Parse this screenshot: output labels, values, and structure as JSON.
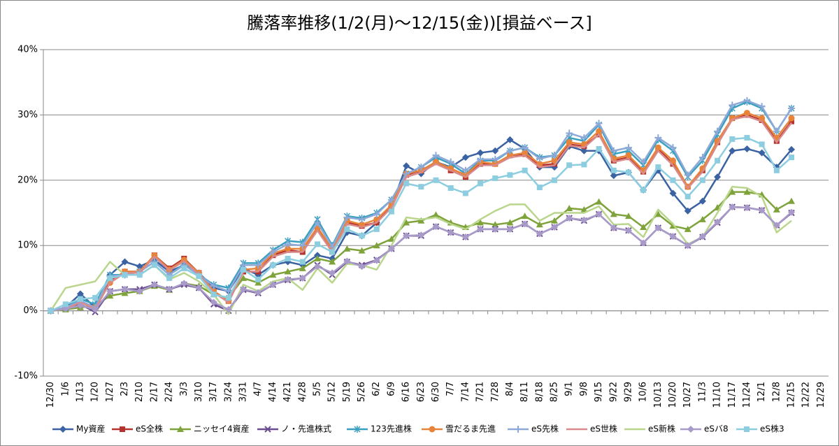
{
  "chart_data": {
    "type": "line",
    "title": "騰落率推移(1/2(月)～12/15(金))[損益ベース]",
    "categories": [
      "12/30",
      "1/6",
      "1/13",
      "1/20",
      "1/27",
      "2/3",
      "2/10",
      "2/17",
      "2/24",
      "3/3",
      "3/10",
      "3/17",
      "3/24",
      "3/31",
      "4/7",
      "4/14",
      "4/21",
      "4/28",
      "5/5",
      "5/12",
      "5/19",
      "5/26",
      "6/2",
      "6/9",
      "6/16",
      "6/23",
      "6/30",
      "7/7",
      "7/14",
      "7/21",
      "7/28",
      "8/4",
      "8/11",
      "8/18",
      "8/25",
      "9/1",
      "9/8",
      "9/15",
      "9/22",
      "9/29",
      "10/6",
      "10/13",
      "10/20",
      "10/27",
      "11/3",
      "11/10",
      "11/17",
      "11/24",
      "12/1",
      "12/8",
      "12/15",
      "12/22",
      "12/29"
    ],
    "ylim": [
      -10,
      40
    ],
    "yticks": [
      {
        "value": -10,
        "label": "-10%"
      },
      {
        "value": 0,
        "label": "0%"
      },
      {
        "value": 10,
        "label": "10%"
      },
      {
        "value": 20,
        "label": "20%"
      },
      {
        "value": 30,
        "label": "30%"
      },
      {
        "value": 40,
        "label": "40%"
      }
    ],
    "grid": true,
    "legend": "bottom",
    "series": [
      {
        "name": "My資産",
        "color": "#3b62a3",
        "marker": "diamond",
        "values": [
          0,
          0.5,
          2.6,
          0.5,
          5.5,
          7.5,
          6.8,
          7.8,
          6.0,
          7.0,
          5.8,
          3.5,
          3.0,
          6.5,
          5.5,
          7.0,
          7.5,
          7.0,
          8.5,
          8.0,
          12.0,
          11.5,
          13.5,
          16.0,
          22.2,
          21.0,
          22.8,
          22.0,
          23.5,
          24.2,
          24.5,
          26.2,
          24.8,
          22.0,
          22.0,
          25.2,
          24.5,
          24.5,
          20.7,
          21.2,
          18.5,
          21.5,
          18.0,
          15.3,
          16.8,
          20.5,
          24.5,
          24.8,
          24.2,
          22.0,
          24.7,
          null,
          null
        ]
      },
      {
        "name": "eS全株",
        "color": "#b5322e",
        "marker": "square",
        "values": [
          0,
          0.3,
          1.5,
          0.5,
          4.5,
          6.0,
          6.0,
          8.5,
          6.5,
          8.0,
          5.8,
          3.0,
          1.5,
          6.0,
          6.0,
          8.5,
          9.3,
          9.0,
          12.5,
          9.0,
          13.5,
          13.0,
          13.5,
          16.0,
          20.8,
          21.5,
          22.8,
          21.5,
          20.5,
          22.5,
          22.5,
          23.8,
          24.0,
          22.3,
          22.5,
          25.5,
          25.2,
          27.0,
          23.0,
          23.5,
          21.3,
          24.8,
          22.5,
          19.0,
          21.5,
          25.8,
          29.5,
          30.0,
          29.2,
          26.0,
          29.0,
          null,
          null
        ]
      },
      {
        "name": "ニッセイ4資産",
        "color": "#7fa33b",
        "marker": "triangle",
        "values": [
          0,
          0.2,
          0.5,
          0.8,
          2.3,
          2.7,
          3.0,
          3.8,
          3.2,
          4.2,
          3.8,
          2.5,
          2.0,
          5.0,
          4.3,
          5.5,
          6.0,
          6.5,
          8.0,
          7.5,
          9.5,
          9.2,
          10.0,
          11.0,
          13.5,
          13.8,
          14.7,
          13.5,
          12.8,
          13.5,
          13.2,
          13.5,
          14.5,
          13.2,
          13.8,
          15.7,
          15.5,
          16.7,
          14.8,
          14.5,
          12.8,
          14.8,
          13.0,
          12.5,
          14.0,
          15.8,
          18.2,
          18.2,
          17.8,
          15.5,
          16.8,
          null,
          null
        ]
      },
      {
        "name": "ノ・先進株式",
        "color": "#6a4c8f",
        "marker": "x",
        "values": [
          0,
          0.5,
          1.0,
          -0.2,
          3.0,
          3.3,
          3.3,
          4.0,
          3.3,
          4.0,
          3.5,
          1.0,
          0.0,
          3.2,
          2.7,
          4.0,
          4.7,
          5.0,
          7.0,
          5.5,
          7.5,
          7.0,
          7.8,
          9.5,
          11.5,
          11.5,
          12.9,
          12.0,
          11.3,
          12.5,
          12.5,
          12.5,
          13.3,
          11.8,
          12.8,
          14.2,
          13.8,
          14.8,
          12.7,
          12.3,
          10.4,
          12.7,
          11.4,
          10.0,
          11.3,
          13.5,
          15.9,
          15.8,
          15.4,
          13.1,
          15.0,
          null,
          null
        ]
      },
      {
        "name": "123先進株",
        "color": "#3aa0c0",
        "marker": "asterisk",
        "values": [
          0,
          0.5,
          1.8,
          1.0,
          5.5,
          5.5,
          6.0,
          7.5,
          5.5,
          7.2,
          5.5,
          4.0,
          3.5,
          7.3,
          7.3,
          9.3,
          10.7,
          10.5,
          14.0,
          10.0,
          14.5,
          14.2,
          15.0,
          17.0,
          21.0,
          22.0,
          23.5,
          22.5,
          21.0,
          23.0,
          23.0,
          24.5,
          25.0,
          23.5,
          23.8,
          26.5,
          26.0,
          28.5,
          24.0,
          24.5,
          22.3,
          26.2,
          24.5,
          20.5,
          23.0,
          27.0,
          31.0,
          32.0,
          31.0,
          27.5,
          31.0,
          null,
          null
        ]
      },
      {
        "name": "雪だるま先進",
        "color": "#e8843a",
        "marker": "circle",
        "values": [
          0,
          0.5,
          1.3,
          0.5,
          4.3,
          6.0,
          6.0,
          8.5,
          6.3,
          7.8,
          5.8,
          3.0,
          1.5,
          6.3,
          6.5,
          8.8,
          9.5,
          9.5,
          12.8,
          9.5,
          13.8,
          13.2,
          14.0,
          16.2,
          21.0,
          21.5,
          22.8,
          21.8,
          20.8,
          22.8,
          22.5,
          23.8,
          24.2,
          22.5,
          23.0,
          25.8,
          25.5,
          27.5,
          23.3,
          23.8,
          21.5,
          25.0,
          23.0,
          19.0,
          21.8,
          26.0,
          29.5,
          30.3,
          29.5,
          26.5,
          29.5,
          null,
          null
        ]
      },
      {
        "name": "eS先株",
        "color": "#8ea9d8",
        "marker": "plus",
        "values": [
          0,
          0.5,
          1.5,
          0.5,
          5.3,
          5.5,
          6.0,
          7.5,
          5.5,
          7.0,
          5.5,
          3.8,
          3.0,
          7.0,
          7.0,
          9.0,
          10.2,
          10.0,
          13.5,
          9.8,
          14.3,
          14.0,
          14.8,
          17.0,
          21.0,
          22.0,
          23.8,
          22.8,
          21.5,
          23.2,
          23.2,
          24.5,
          25.0,
          23.3,
          23.8,
          27.2,
          26.5,
          28.7,
          24.5,
          25.0,
          22.8,
          26.5,
          25.0,
          20.8,
          23.5,
          27.5,
          31.5,
          32.2,
          31.3,
          27.5,
          31.0,
          null,
          null
        ]
      },
      {
        "name": "eS世株",
        "color": "#d98b8b",
        "marker": "none",
        "values": [
          0,
          0.3,
          1.3,
          0.3,
          4.3,
          5.8,
          5.8,
          8.3,
          6.2,
          7.6,
          5.6,
          2.8,
          1.3,
          6.0,
          6.0,
          8.3,
          9.0,
          9.0,
          12.3,
          9.0,
          13.3,
          12.8,
          13.5,
          15.8,
          20.5,
          21.2,
          22.5,
          21.5,
          20.5,
          22.3,
          22.3,
          23.5,
          23.8,
          22.0,
          22.3,
          25.3,
          25.0,
          27.0,
          22.8,
          23.3,
          21.0,
          24.5,
          22.3,
          18.8,
          21.3,
          25.5,
          29.3,
          29.8,
          29.0,
          25.8,
          28.8,
          null,
          null
        ]
      },
      {
        "name": "eS新株",
        "color": "#b9d68c",
        "marker": "none",
        "values": [
          0,
          3.5,
          4.0,
          4.5,
          7.5,
          5.5,
          5.5,
          7.0,
          4.8,
          5.8,
          4.5,
          2.5,
          -0.5,
          4.0,
          3.0,
          4.5,
          5.0,
          3.2,
          6.5,
          4.3,
          7.2,
          7.0,
          6.3,
          10.0,
          14.3,
          14.0,
          14.3,
          13.3,
          12.5,
          14.0,
          15.3,
          16.3,
          16.3,
          13.8,
          15.0,
          15.0,
          15.0,
          16.0,
          13.2,
          13.3,
          11.3,
          15.5,
          13.3,
          10.2,
          11.3,
          15.0,
          19.0,
          18.8,
          17.5,
          12.0,
          13.8,
          null,
          null
        ]
      },
      {
        "name": "eSバ8",
        "color": "#a89bc9",
        "marker": "diamond",
        "values": [
          0,
          0.3,
          0.8,
          0.2,
          3.0,
          3.3,
          3.0,
          4.0,
          3.3,
          4.2,
          3.5,
          1.3,
          0.2,
          3.3,
          2.8,
          4.0,
          4.8,
          5.0,
          6.8,
          5.8,
          7.6,
          6.8,
          7.7,
          9.5,
          11.5,
          11.6,
          12.9,
          12.0,
          11.3,
          12.5,
          12.5,
          12.5,
          13.3,
          11.8,
          12.8,
          14.2,
          13.9,
          14.8,
          12.7,
          12.3,
          10.4,
          12.7,
          11.4,
          10.0,
          11.4,
          13.6,
          15.9,
          15.8,
          15.4,
          13.1,
          15.1,
          null,
          null
        ]
      },
      {
        "name": "eS株3",
        "color": "#8ccde0",
        "marker": "square",
        "values": [
          0,
          1.0,
          1.8,
          2.0,
          5.0,
          5.5,
          5.5,
          7.0,
          5.0,
          6.5,
          5.3,
          2.5,
          2.0,
          6.3,
          4.8,
          7.0,
          8.0,
          7.5,
          10.2,
          9.0,
          12.5,
          11.5,
          12.5,
          15.2,
          19.5,
          19.0,
          20.0,
          18.8,
          18.0,
          19.5,
          20.3,
          20.8,
          21.5,
          18.9,
          20.0,
          22.3,
          22.4,
          24.8,
          21.5,
          21.2,
          18.5,
          22.0,
          20.0,
          17.5,
          20.0,
          23.0,
          26.3,
          26.5,
          25.5,
          21.5,
          23.5,
          null,
          null
        ]
      }
    ]
  }
}
